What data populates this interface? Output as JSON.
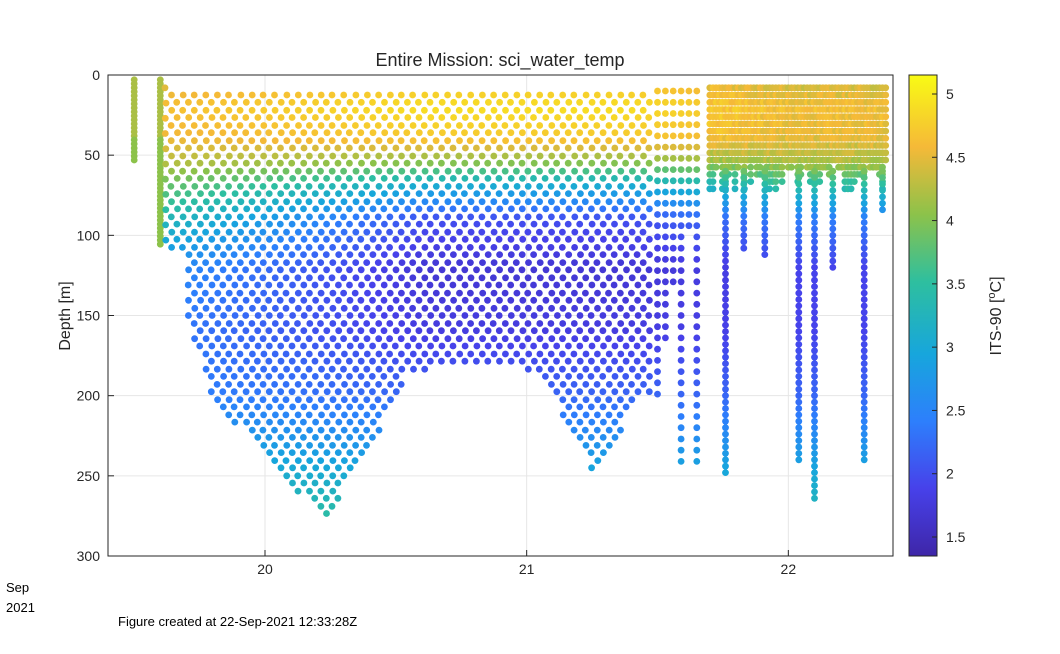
{
  "chart_data": {
    "type": "scatter",
    "title": "Entire Mission: sci_water_temp",
    "xlabel": "",
    "ylabel": "Depth [m]",
    "xlim": [
      19.4,
      22.4
    ],
    "ylim": [
      300,
      0
    ],
    "x_ticks": [
      20,
      21,
      22
    ],
    "y_ticks": [
      0,
      50,
      100,
      150,
      200,
      250,
      300
    ],
    "grid": true,
    "colorbar": {
      "label": "ITS-90 [°C]",
      "label_base": "ITS-90 [",
      "label_sup": "o",
      "label_end": "C]",
      "range": [
        1.35,
        5.15
      ],
      "ticks": [
        1.5,
        2,
        2.5,
        3,
        3.5,
        4,
        4.5,
        5
      ],
      "colormap": "parula"
    },
    "profiles": [
      {
        "t": 19.5,
        "min_depth": 5,
        "max_depth": 55,
        "color_by": "surface"
      },
      {
        "t": 19.6,
        "min_depth": 3,
        "max_depth": 107,
        "color_by": "surface"
      },
      {
        "t": 19.8,
        "min_depth": 8,
        "max_depth": 200
      },
      {
        "t": 20.0,
        "min_depth": 8,
        "max_depth": 240
      },
      {
        "t": 20.23,
        "min_depth": 8,
        "max_depth": 277
      },
      {
        "t": 20.4,
        "min_depth": 8,
        "max_depth": 235
      },
      {
        "t": 20.55,
        "min_depth": 8,
        "max_depth": 185
      },
      {
        "t": 20.8,
        "min_depth": 8,
        "max_depth": 180
      },
      {
        "t": 21.05,
        "min_depth": 8,
        "max_depth": 185
      },
      {
        "t": 21.25,
        "min_depth": 8,
        "max_depth": 247
      },
      {
        "t": 21.45,
        "min_depth": 8,
        "max_depth": 200
      },
      {
        "t": 21.6,
        "min_depth": 8,
        "max_depth": 245
      },
      {
        "t": 21.76,
        "min_depth": 8,
        "max_depth": 248
      },
      {
        "t": 22.04,
        "min_depth": 8,
        "max_depth": 240
      },
      {
        "t": 22.1,
        "min_depth": 8,
        "max_depth": 266
      },
      {
        "t": 22.29,
        "min_depth": 8,
        "max_depth": 243
      }
    ],
    "temperature_profile": {
      "depth": [
        0,
        20,
        40,
        55,
        70,
        90,
        120,
        160,
        200,
        250,
        280
      ],
      "temp_west": [
        4.3,
        4.6,
        4.5,
        4.3,
        4.0,
        3.6,
        2.8,
        2.5,
        2.5,
        3.2,
        3.6
      ],
      "temp_central": [
        4.6,
        4.9,
        4.7,
        4.0,
        3.0,
        2.0,
        1.7,
        1.8,
        2.2,
        3.0,
        3.5
      ],
      "temp_east": [
        4.3,
        4.6,
        4.5,
        4.2,
        3.4,
        2.4,
        1.9,
        1.9,
        2.2,
        3.0,
        3.4
      ]
    }
  },
  "date_label": {
    "month": "Sep",
    "year": "2021"
  },
  "footer": {
    "text": "Figure created at 22-Sep-2021 12:33:28Z"
  }
}
